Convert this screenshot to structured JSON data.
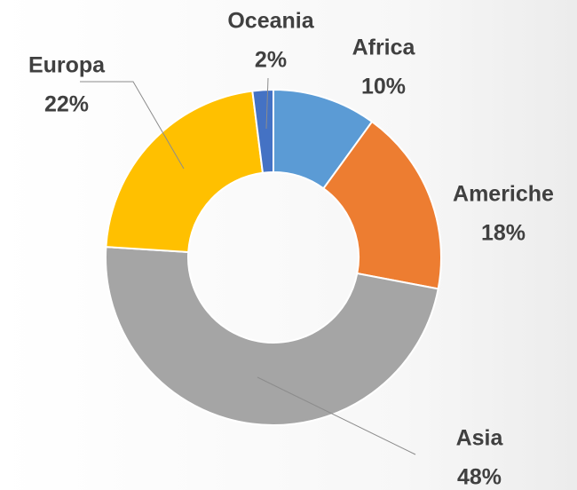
{
  "chart_data": {
    "type": "donut",
    "categories": [
      "Africa",
      "Americhe",
      "Asia",
      "Europa",
      "Oceania"
    ],
    "values": [
      10,
      18,
      48,
      22,
      2
    ],
    "value_labels": [
      "10%",
      "18%",
      "48%",
      "22%",
      "2%"
    ],
    "colors": [
      "#5b9bd5",
      "#ed7d31",
      "#a5a5a5",
      "#ffc000",
      "#4472c4"
    ]
  }
}
